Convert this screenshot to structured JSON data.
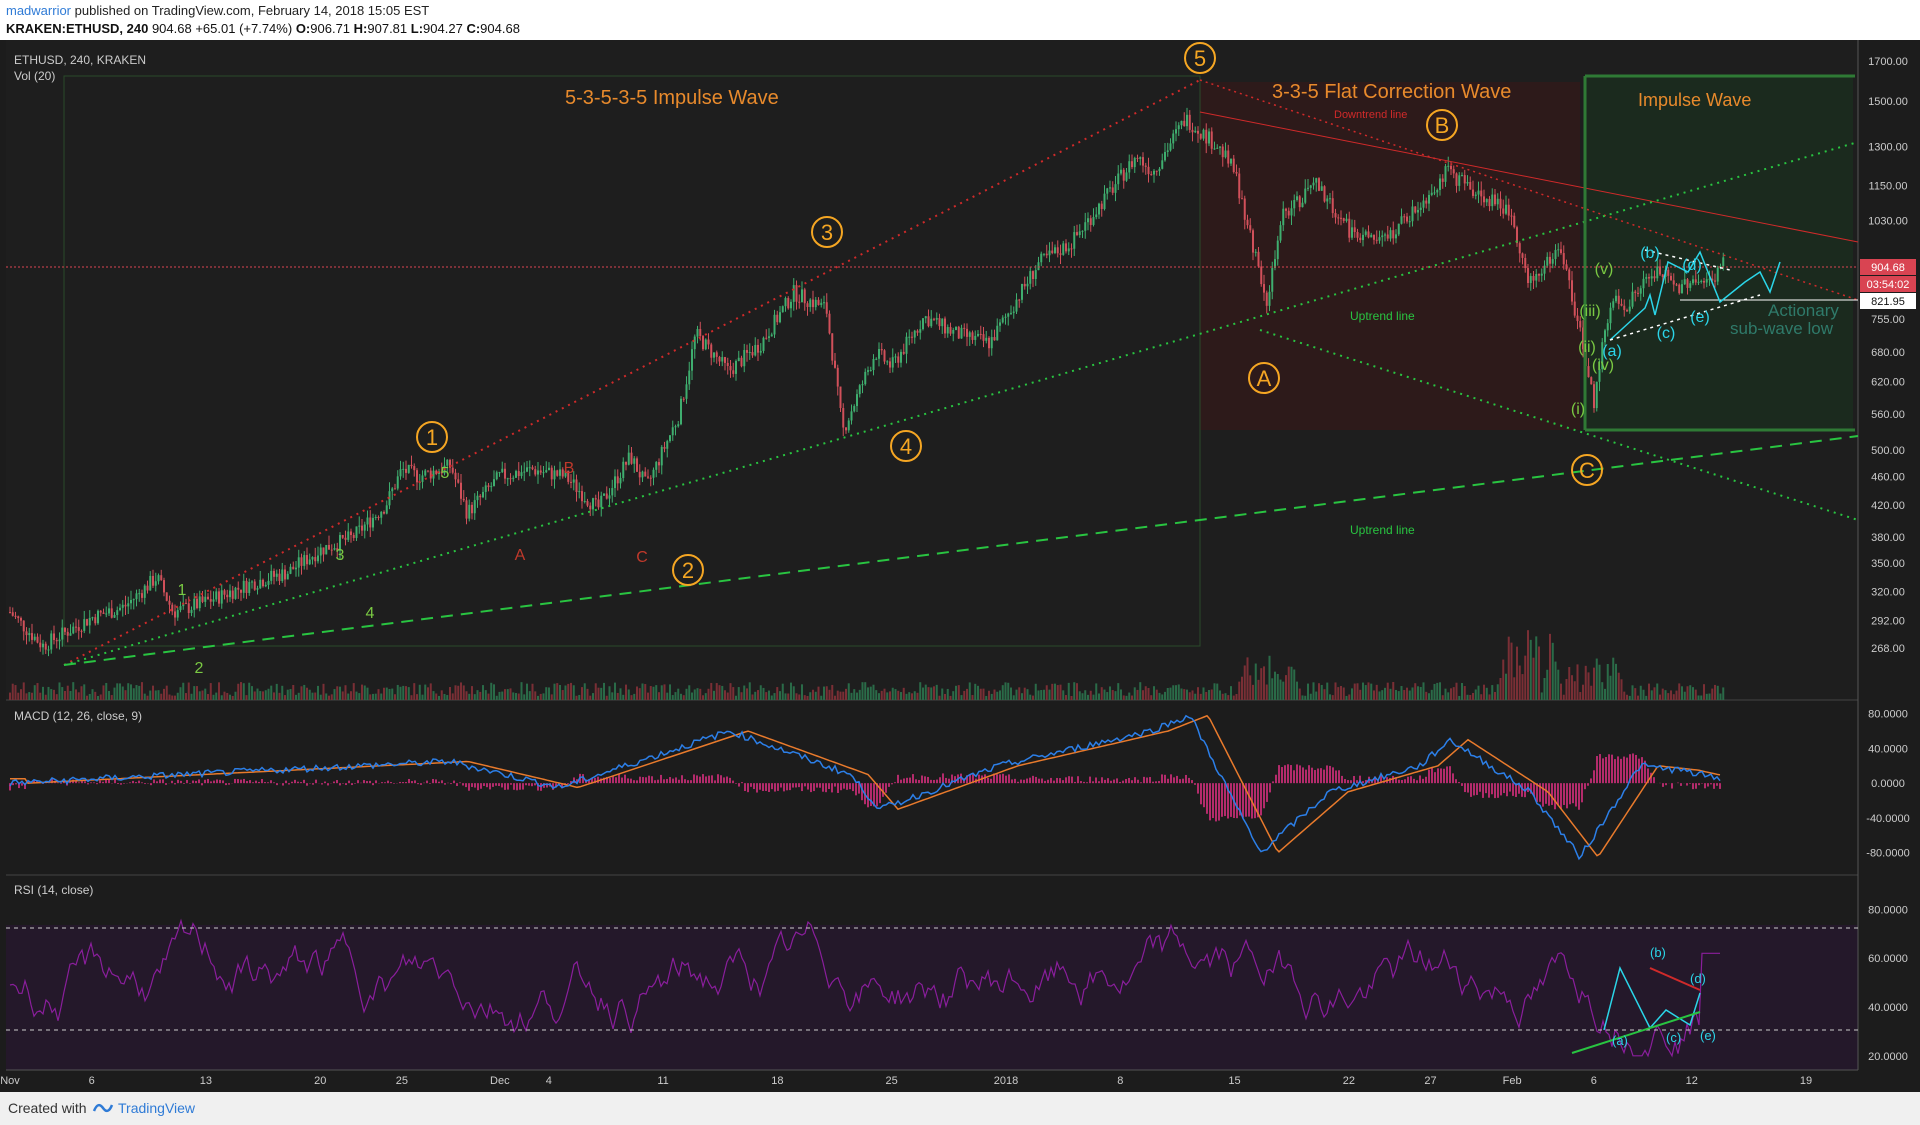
{
  "header": {
    "author": "madwarrior",
    "published": "published on TradingView.com, February 14, 2018 15:05 EST",
    "symbol": "KRAKEN:ETHUSD, 240",
    "last": "904.68",
    "change": "+65.01 (+7.74%)",
    "o_label": "O:",
    "o_value": "906.71",
    "h_label": "H:",
    "h_value": "907.81",
    "l_label": "L:",
    "l_value": "904.27",
    "c_label": "C:",
    "c_value": "904.68"
  },
  "footer": {
    "created": "Created with",
    "brand": "TradingView"
  },
  "colors": {
    "background": "#1c1c1c",
    "candle_up": "#3fae6f",
    "candle_down": "#d1505a",
    "macd_line": "#2c7fe8",
    "signal_line": "#e87a2c",
    "rsi_line": "#8a1e9c",
    "wave_orange": "#f5a623",
    "uptrend_green": "#29c441",
    "downtrend_red": "#d02a2a",
    "current_price": "#d94452"
  },
  "main_pane": {
    "symbol_label": "ETHUSD, 240, KRAKEN",
    "volume_label": "Vol (20)",
    "current_price_label": "904.68",
    "countdown_label": "03:54:02",
    "level_label": "821.95",
    "titles": {
      "impulse_main": "5-3-5-3-5 Impulse Wave",
      "flat_correction": "3-3-5 Flat Correction Wave",
      "impulse_new": "Impulse Wave",
      "actionary_line1": "Actionary",
      "actionary_line2": "sub-wave low"
    },
    "trend_labels": {
      "downtrend": "Downtrend line",
      "uptrend": "Uptrend line"
    },
    "price_axis": [
      "1700.00",
      "1500.00",
      "1300.00",
      "1150.00",
      "1030.00",
      "904.68",
      "755.00",
      "680.00",
      "620.00",
      "560.00",
      "500.00",
      "460.00",
      "420.00",
      "380.00",
      "350.00",
      "320.00",
      "292.00",
      "268.00"
    ],
    "circled_labels": [
      "1",
      "2",
      "3",
      "4",
      "5",
      "A",
      "B",
      "C"
    ],
    "minor_labels": [
      "1",
      "2",
      "3",
      "4",
      "5",
      "A",
      "B",
      "C",
      "(i)",
      "(ii)",
      "(iii)",
      "(iv)",
      "(v)",
      "(a)",
      "(b)",
      "(c)",
      "(d)",
      "(e)"
    ]
  },
  "macd_pane": {
    "label": "MACD (12, 26, close, 9)",
    "axis": [
      "80.0000",
      "40.0000",
      "0.0000",
      "-40.0000",
      "-80.0000"
    ]
  },
  "rsi_pane": {
    "label": "RSI (14, close)",
    "axis": [
      "80.0000",
      "60.0000",
      "40.0000",
      "20.0000"
    ],
    "labels": [
      "(a)",
      "(b)",
      "(c)",
      "(d)",
      "(e)"
    ]
  },
  "time_axis": [
    "Nov",
    "6",
    "13",
    "20",
    "25",
    "Dec",
    "4",
    "11",
    "18",
    "25",
    "2018",
    "8",
    "15",
    "22",
    "27",
    "Feb",
    "6",
    "12",
    "19"
  ],
  "chart_data": {
    "type": "candlestick",
    "title": "ETHUSD, 240, KRAKEN",
    "y_scale": "log",
    "ylim": [
      250,
      1750
    ],
    "x_range": [
      "Nov 1, 2017",
      "Feb 21, 2018"
    ],
    "path_price": [
      [
        "Nov 1",
        300
      ],
      [
        "Nov 3",
        270
      ],
      [
        "Nov 6",
        295
      ],
      [
        "Nov 8",
        305
      ],
      [
        "Nov 10",
        335
      ],
      [
        "Nov 11",
        300
      ],
      [
        "Nov 13",
        310
      ],
      [
        "Nov 16",
        330
      ],
      [
        "Nov 18",
        340
      ],
      [
        "Nov 20",
        365
      ],
      [
        "Nov 22",
        380
      ],
      [
        "Nov 24",
        420
      ],
      [
        "Nov 25",
        470
      ],
      [
        "Nov 26",
        460
      ],
      [
        "Nov 28",
        475
      ],
      [
        "Nov 29",
        410
      ],
      [
        "Dec 1",
        460
      ],
      [
        "Dec 3",
        470
      ],
      [
        "Dec 5",
        460
      ],
      [
        "Dec 7",
        415
      ],
      [
        "Dec 9",
        490
      ],
      [
        "Dec 10",
        445
      ],
      [
        "Dec 12",
        560
      ],
      [
        "Dec 13",
        720
      ],
      [
        "Dec 15",
        640
      ],
      [
        "Dec 17",
        700
      ],
      [
        "Dec 19",
        820
      ],
      [
        "Dec 21",
        780
      ],
      [
        "Dec 22",
        530
      ],
      [
        "Dec 24",
        680
      ],
      [
        "Dec 25",
        650
      ],
      [
        "Dec 27",
        760
      ],
      [
        "Dec 29",
        720
      ],
      [
        "Dec 31",
        700
      ],
      [
        "Jan 1",
        760
      ],
      [
        "Jan 3",
        900
      ],
      [
        "Jan 5",
        960
      ],
      [
        "Jan 7",
        1100
      ],
      [
        "Jan 9",
        1260
      ],
      [
        "Jan 10",
        1200
      ],
      [
        "Jan 12",
        1420
      ],
      [
        "Jan 14",
        1300
      ],
      [
        "Jan 15",
        1200
      ],
      [
        "Jan 17",
        800
      ],
      [
        "Jan 18",
        1050
      ],
      [
        "Jan 20",
        1150
      ],
      [
        "Jan 22",
        1000
      ],
      [
        "Jan 24",
        960
      ],
      [
        "Jan 26",
        1060
      ],
      [
        "Jan 28",
        1200
      ],
      [
        "Jan 30",
        1120
      ],
      [
        "Feb 1",
        1050
      ],
      [
        "Feb 2",
        840
      ],
      [
        "Feb 4",
        950
      ],
      [
        "Feb 5",
        750
      ],
      [
        "Feb 6",
        580
      ],
      [
        "Feb 7",
        800
      ],
      [
        "Feb 8",
        790
      ],
      [
        "Feb 9",
        840
      ],
      [
        "Feb 10",
        880
      ],
      [
        "Feb 11",
        830
      ],
      [
        "Feb 12",
        860
      ],
      [
        "Feb 13",
        840
      ],
      [
        "Feb 14",
        904.68
      ]
    ],
    "volume_spikes": [
      [
        "Jan 17",
        "high"
      ],
      [
        "Feb 2",
        "very high"
      ],
      [
        "Feb 6",
        "high"
      ]
    ],
    "macd": {
      "name": "MACD (12, 26, close, 9)",
      "ylim": [
        -100,
        90
      ],
      "extremes": [
        [
          "Jan 11",
          78
        ],
        [
          "Jan 17",
          -80
        ],
        [
          "Feb 6",
          -85
        ],
        [
          "Feb 14",
          5
        ]
      ]
    },
    "rsi": {
      "name": "RSI (14, close)",
      "ylim": [
        15,
        90
      ],
      "bands": [
        30,
        70
      ],
      "last": 62
    }
  }
}
